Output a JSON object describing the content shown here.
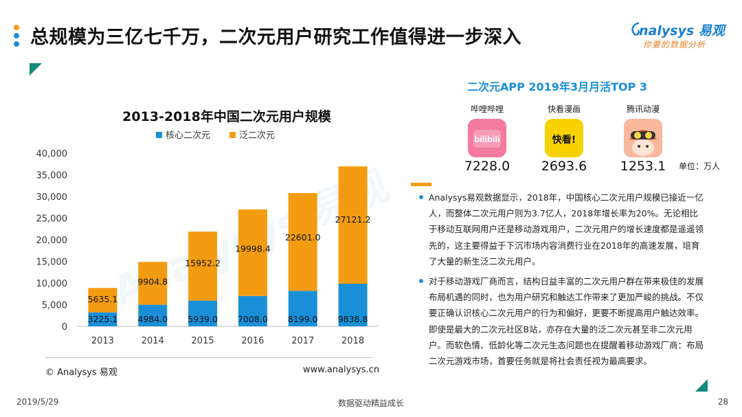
{
  "slide": {
    "title": "总规模为三亿七千万，二次元用户研究工作值得进一步深入",
    "title_dot_colors": [
      "#f39c12",
      "#1a8fd8",
      "#1a8fd8"
    ]
  },
  "logo": {
    "main": "nalysys 易观",
    "sub": "你要的数据分析"
  },
  "chart_data": {
    "type": "bar",
    "stacked": true,
    "title": "2013-2018年中国二次元用户规模",
    "categories": [
      "2013",
      "2014",
      "2015",
      "2016",
      "2017",
      "2018"
    ],
    "series": [
      {
        "name": "核心二次元",
        "color": "#1a8fd8",
        "values": [
          3225.1,
          4984.0,
          5939.0,
          7008.0,
          8199.0,
          9838.8
        ]
      },
      {
        "name": "泛二次元",
        "color": "#f39c12",
        "values": [
          5635.1,
          9904.8,
          15952.2,
          19998.4,
          22601.0,
          27121.2
        ]
      }
    ],
    "ylim": [
      0,
      40000
    ],
    "yticks": [
      0,
      5000,
      10000,
      15000,
      20000,
      25000,
      30000,
      35000,
      40000
    ],
    "ytick_labels": [
      "0",
      "5,000",
      "10,000",
      "15,000",
      "20,000",
      "25,000",
      "30,000",
      "35,000",
      "40,000"
    ],
    "value_labels": [
      [
        "3225.1",
        "4984.0",
        "5939.0",
        "7008.0",
        "8199.0",
        "9838.8"
      ],
      [
        "5635.1",
        "9904.8",
        "15952.2",
        "19998.4",
        "22601.0",
        "27121.2"
      ]
    ],
    "legend_position": "top",
    "grid": false
  },
  "source": {
    "copyright": "© Analysys 易观",
    "website": "www.analysys.cn"
  },
  "apps": {
    "title": "二次元APP 2019年3月月活TOP 3",
    "unit": "单位：万人",
    "items": [
      {
        "name": "哔哩哔哩",
        "value": "7228.0",
        "icon": "bilibili-icon",
        "icon_text": "bilibili"
      },
      {
        "name": "快看漫画",
        "value": "2693.6",
        "icon": "kuaikan-icon",
        "icon_text": "快看!"
      },
      {
        "name": "腾讯动漫",
        "value": "1253.1",
        "icon": "tencent-comic-icon",
        "icon_text": ""
      }
    ]
  },
  "analysis": {
    "paragraphs": [
      "Analysys易观数据显示，2018年，中国核心二次元用户规模已接近一亿人，而整体二次元用户则为3.7亿人，2018年增长率为20%。无论相比于移动互联网用户还是移动游戏用户，二次元用户的增长速度都是遥遥领先的，这主要得益于下沉市场内容消费行业在2018年的高速发展，培育了大量的新生泛二次元用户。",
      "对于移动游戏厂商而言，结构日益丰富的二次元用户群在带来极佳的发展布局机遇的同时，也为用户研究和触达工作带来了更加严峻的挑战。不仅要正确认识核心二次元用户的行为和偏好，更要不断提高用户触达效率。即使是最大的二次元社区B站，亦存在大量的泛二次元甚至非二次元用户。而软色情、低龄化等二次元生态问题也在提醒着移动游戏厂商：布局二次元游戏市场，首要任务就是将社会责任视为最高要求。"
    ]
  },
  "footer": {
    "date": "2019/5/29",
    "center": "数据驱动精益成长",
    "page": "28"
  }
}
